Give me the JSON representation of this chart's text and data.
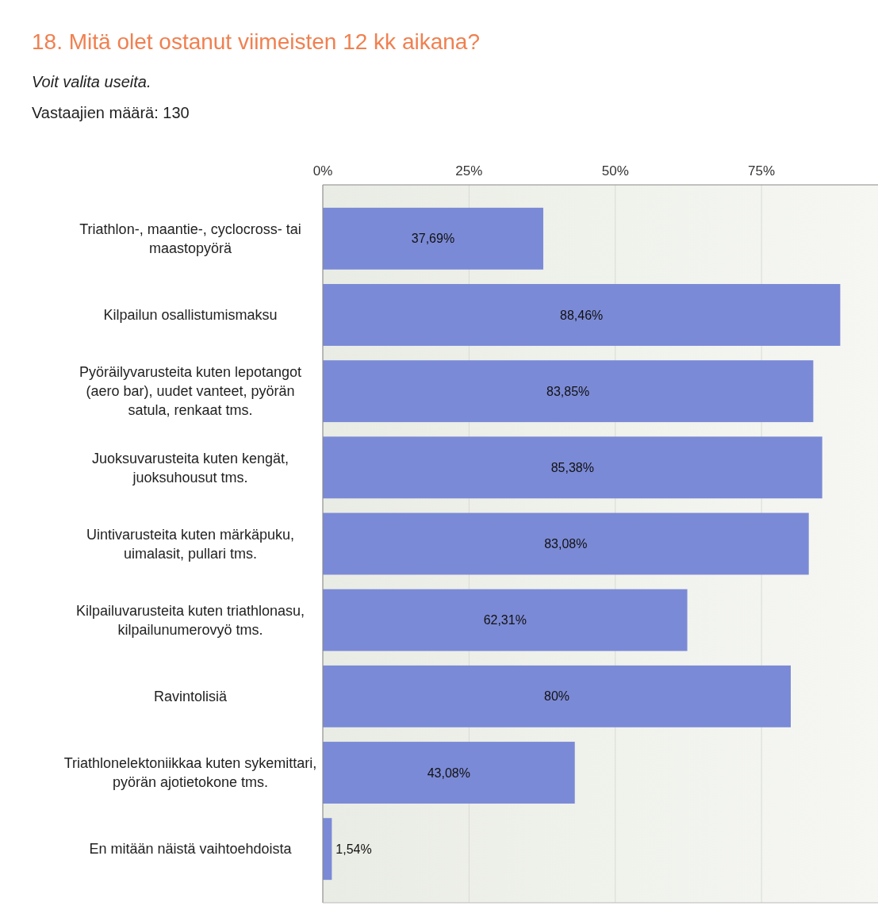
{
  "chart_data": {
    "type": "bar",
    "orientation": "horizontal",
    "title": "18. Mitä olet ostanut viimeisten 12 kk aikana?",
    "subtitle": "Voit valita useita.",
    "annotations": [
      "Vastaajien määrä: 130"
    ],
    "categories": [
      "Triathlon-, maantie-, cyclocross- tai maastopyörä",
      "Kilpailun osallistumismaksu",
      "Pyöräilyvarusteita kuten lepotangot (aero bar), uudet vanteet, pyörän satula, renkaat tms.",
      "Juoksuvarusteita kuten kengät, juoksuhousut tms.",
      "Uintivarusteita kuten märkäpuku, uimalasit, pullari tms.",
      "Kilpailuvarusteita kuten triathlonasu, kilpailunumerovyö tms.",
      "Ravintolisiä",
      "Triathlonelektoniikkaa kuten sykemittari, pyörän ajotietokone tms.",
      "En mitään näistä vaihtoehdoista"
    ],
    "values": [
      37.69,
      88.46,
      83.85,
      85.38,
      83.08,
      62.31,
      80,
      43.08,
      1.54
    ],
    "value_labels": [
      "37,69%",
      "88,46%",
      "83,85%",
      "85,38%",
      "83,08%",
      "62,31%",
      "80%",
      "43,08%",
      "1,54%"
    ],
    "color": "#7b8ad6",
    "xlim": [
      0,
      96
    ],
    "xticks": [
      {
        "value": 0,
        "label": "0%"
      },
      {
        "value": 25,
        "label": "25%"
      },
      {
        "value": 50,
        "label": "50%"
      },
      {
        "value": 75,
        "label": "75%"
      }
    ],
    "grid": "x"
  }
}
